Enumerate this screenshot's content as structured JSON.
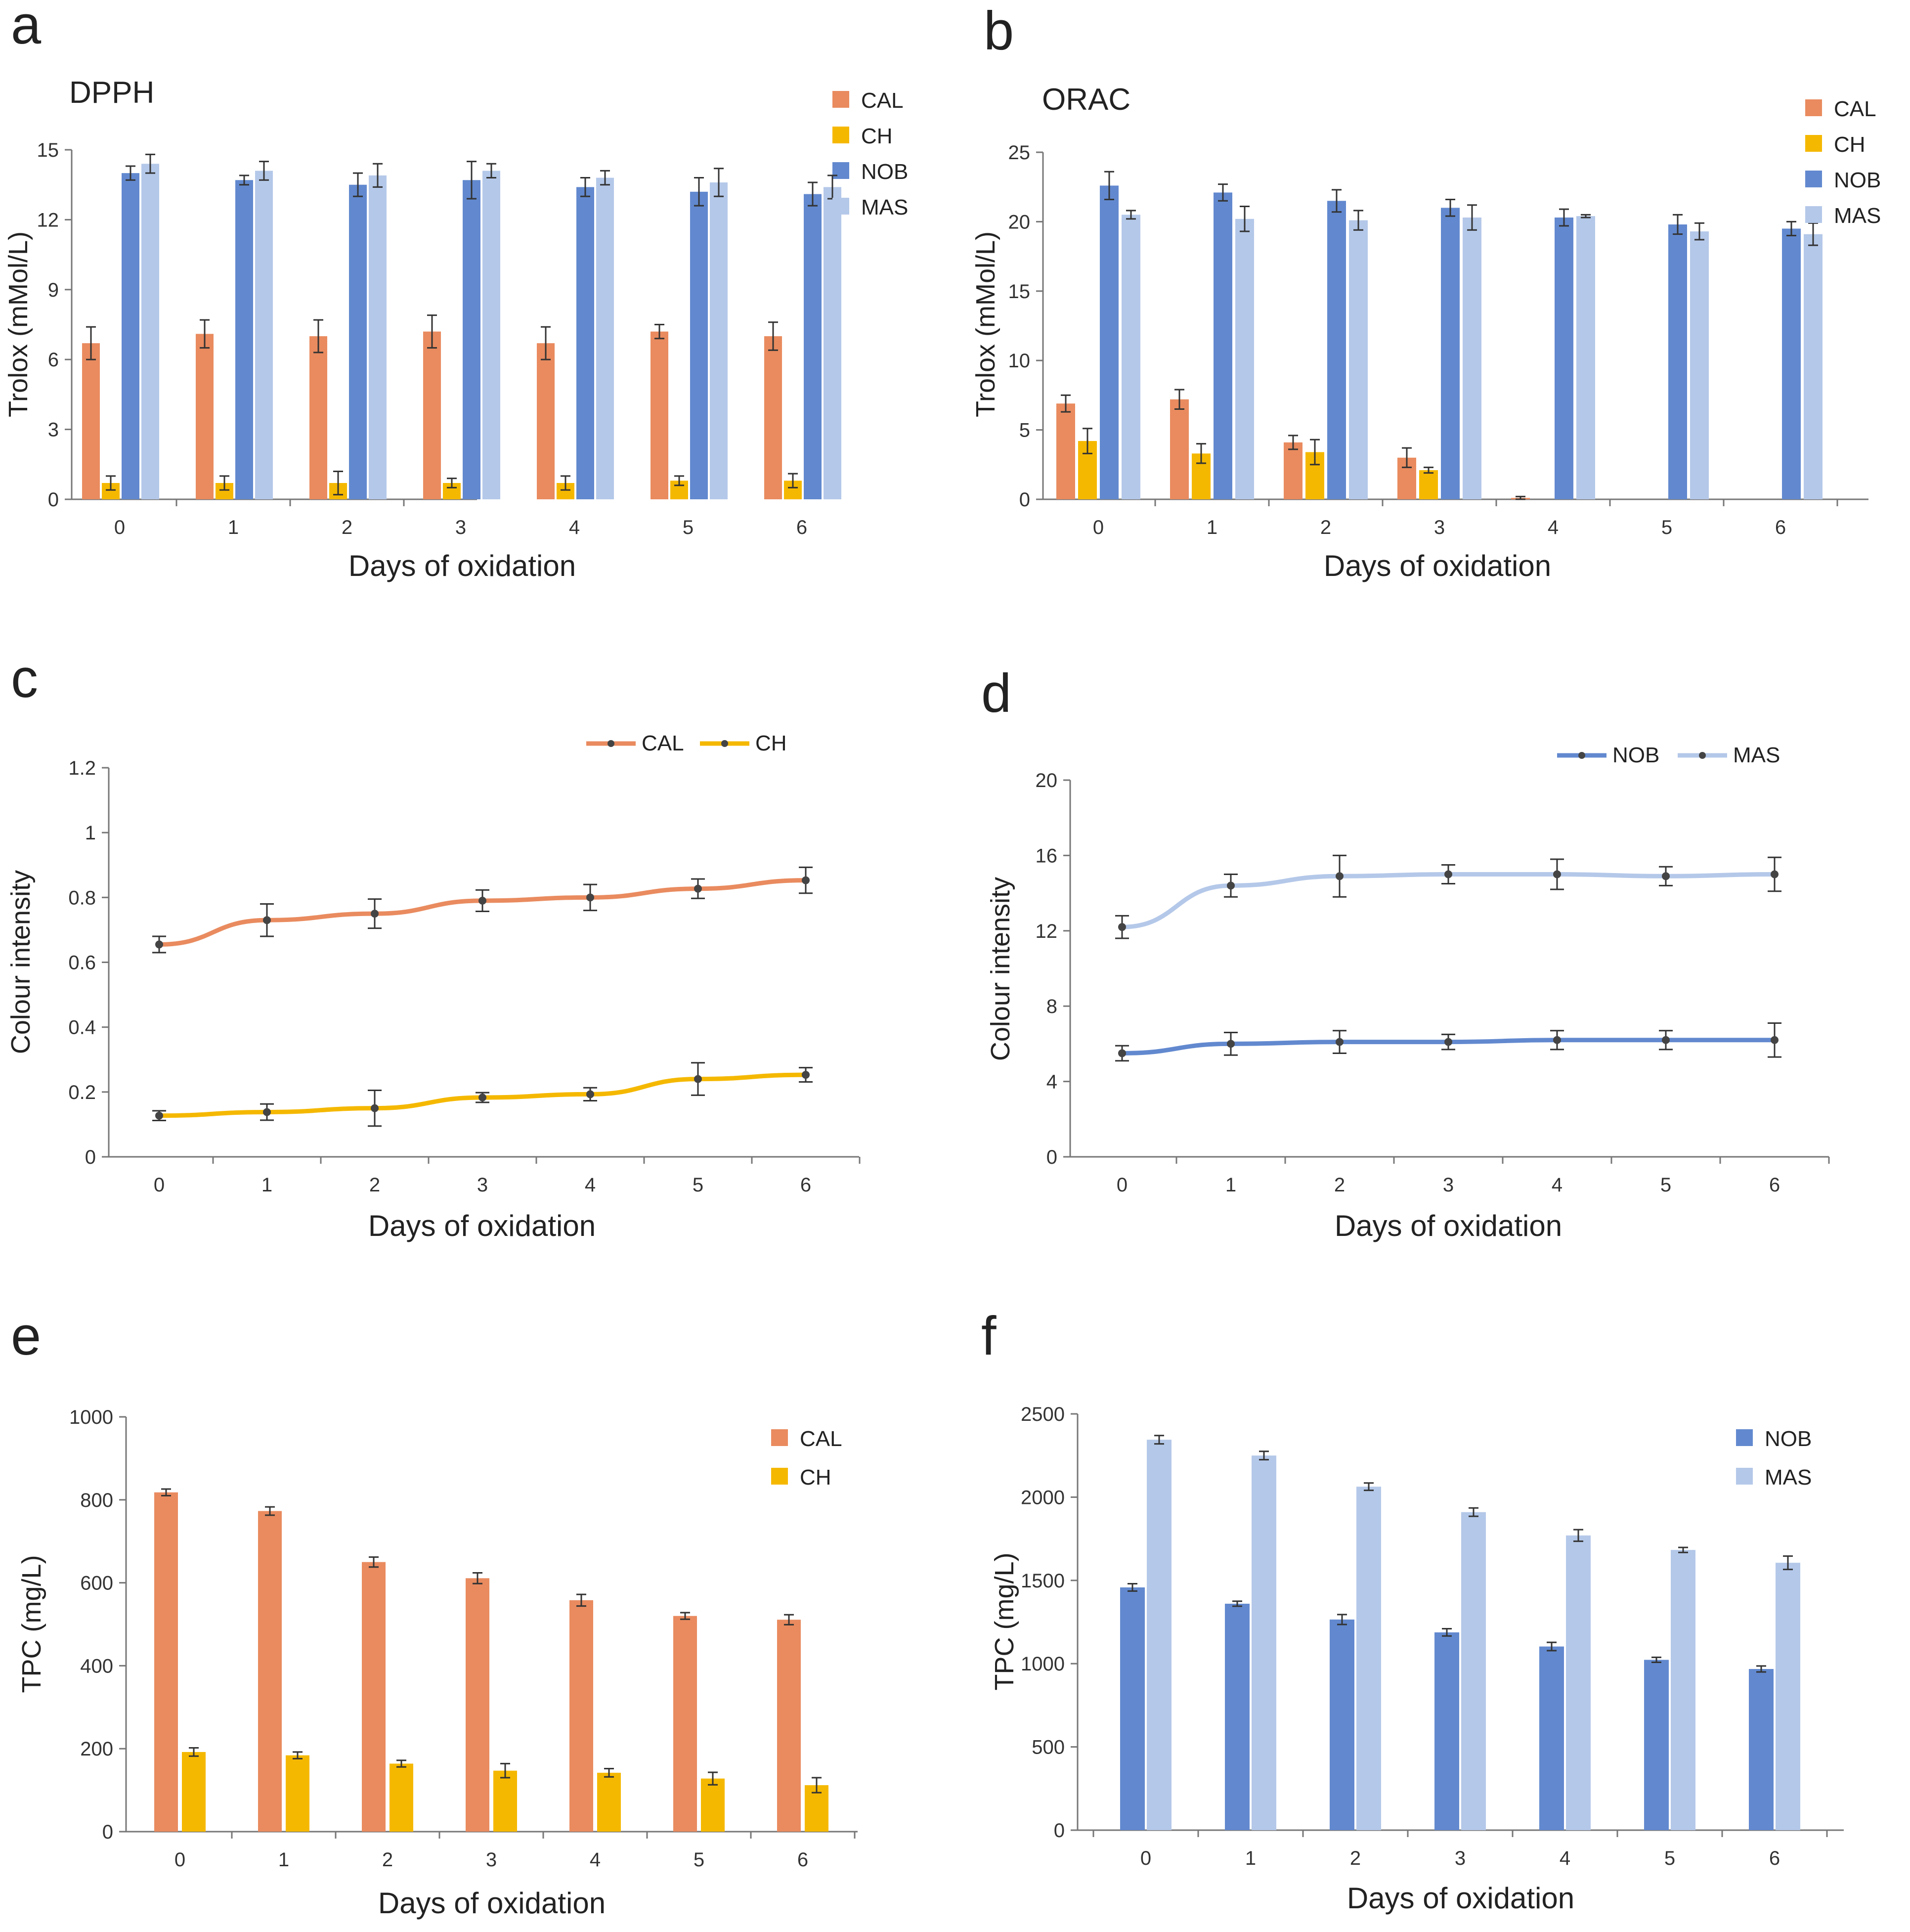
{
  "figure": {
    "colors": {
      "CAL": "#E98B5F",
      "CH": "#F5B800",
      "NOB": "#6289CF",
      "MAS": "#B4C8E9",
      "axis": "#777777",
      "errorbar": "#333333"
    }
  },
  "chart_data": [
    {
      "panel": "a",
      "type": "bar",
      "title": "DPPH",
      "xlabel": "Days of oxidation",
      "ylabel": "Trolox (mMol/L)",
      "categories": [
        "0",
        "1",
        "2",
        "3",
        "4",
        "5",
        "6"
      ],
      "ylim": [
        0,
        15
      ],
      "yticks": [
        "0",
        "3",
        "6",
        "9",
        "12",
        "15"
      ],
      "legend_position": "top-right",
      "series": [
        {
          "name": "CAL",
          "color": "#E98B5F",
          "values": [
            6.7,
            7.1,
            7.0,
            7.2,
            6.7,
            7.2,
            7.0
          ],
          "errors": [
            0.7,
            0.6,
            0.7,
            0.7,
            0.7,
            0.3,
            0.6
          ]
        },
        {
          "name": "CH",
          "color": "#F5B800",
          "values": [
            0.7,
            0.7,
            0.7,
            0.7,
            0.7,
            0.8,
            0.8
          ],
          "errors": [
            0.3,
            0.3,
            0.5,
            0.2,
            0.3,
            0.2,
            0.3
          ]
        },
        {
          "name": "NOB",
          "color": "#6289CF",
          "values": [
            14.0,
            13.7,
            13.5,
            13.7,
            13.4,
            13.2,
            13.1
          ],
          "errors": [
            0.3,
            0.2,
            0.5,
            0.8,
            0.4,
            0.6,
            0.5
          ]
        },
        {
          "name": "MAS",
          "color": "#B4C8E9",
          "values": [
            14.4,
            14.1,
            13.9,
            14.1,
            13.8,
            13.6,
            13.4
          ],
          "errors": [
            0.4,
            0.4,
            0.5,
            0.3,
            0.3,
            0.6,
            0.5
          ]
        }
      ]
    },
    {
      "panel": "b",
      "type": "bar",
      "title": "ORAC",
      "xlabel": "Days of oxidation",
      "ylabel": "Trolox (mMol/L)",
      "categories": [
        "0",
        "1",
        "2",
        "3",
        "4",
        "5",
        "6"
      ],
      "ylim": [
        0,
        25
      ],
      "yticks": [
        "0",
        "5",
        "10",
        "15",
        "20",
        "25"
      ],
      "legend_position": "top-right",
      "series": [
        {
          "name": "CAL",
          "color": "#E98B5F",
          "values": [
            6.9,
            7.2,
            4.1,
            3.0,
            0.1,
            0,
            0
          ],
          "errors": [
            0.6,
            0.7,
            0.5,
            0.7,
            0.1,
            0,
            0
          ]
        },
        {
          "name": "CH",
          "color": "#F5B800",
          "values": [
            4.2,
            3.3,
            3.4,
            2.1,
            0,
            0,
            0
          ],
          "errors": [
            0.9,
            0.7,
            0.9,
            0.2,
            0,
            0,
            0
          ]
        },
        {
          "name": "NOB",
          "color": "#6289CF",
          "values": [
            22.6,
            22.1,
            21.5,
            21.0,
            20.3,
            19.8,
            19.5
          ],
          "errors": [
            1.0,
            0.6,
            0.8,
            0.6,
            0.6,
            0.7,
            0.5
          ]
        },
        {
          "name": "MAS",
          "color": "#B4C8E9",
          "values": [
            20.5,
            20.2,
            20.1,
            20.3,
            20.4,
            19.3,
            19.1
          ],
          "errors": [
            0.3,
            0.9,
            0.7,
            0.9,
            0.1,
            0.6,
            0.8
          ]
        }
      ]
    },
    {
      "panel": "c",
      "type": "line",
      "title": "",
      "xlabel": "Days of oxidation",
      "ylabel": "Colour intensity",
      "x": [
        "0",
        "1",
        "2",
        "3",
        "4",
        "5",
        "6"
      ],
      "ylim": [
        0,
        1.2
      ],
      "yticks": [
        "0",
        "0.2",
        "0.4",
        "0.6",
        "0.8",
        "1",
        "1.2"
      ],
      "legend_position": "top-right",
      "series": [
        {
          "name": "CAL",
          "color": "#E98B5F",
          "values": [
            0.655,
            0.73,
            0.75,
            0.79,
            0.8,
            0.827,
            0.853
          ],
          "errors": [
            0.025,
            0.05,
            0.045,
            0.033,
            0.04,
            0.03,
            0.04
          ]
        },
        {
          "name": "CH",
          "color": "#F5B800",
          "values": [
            0.127,
            0.138,
            0.15,
            0.183,
            0.193,
            0.24,
            0.253
          ],
          "errors": [
            0.015,
            0.025,
            0.055,
            0.015,
            0.02,
            0.05,
            0.022
          ]
        }
      ]
    },
    {
      "panel": "d",
      "type": "line",
      "title": "",
      "xlabel": "Days of oxidation",
      "ylabel": "Colour intensity",
      "x": [
        "0",
        "1",
        "2",
        "3",
        "4",
        "5",
        "6"
      ],
      "ylim": [
        0,
        20
      ],
      "yticks": [
        "0",
        "4",
        "8",
        "12",
        "16",
        "20"
      ],
      "legend_position": "top-right",
      "series": [
        {
          "name": "NOB",
          "color": "#6289CF",
          "values": [
            5.5,
            6.0,
            6.1,
            6.1,
            6.2,
            6.2,
            6.2
          ],
          "errors": [
            0.4,
            0.6,
            0.6,
            0.4,
            0.5,
            0.5,
            0.9
          ]
        },
        {
          "name": "MAS",
          "color": "#B4C8E9",
          "values": [
            12.2,
            14.4,
            14.9,
            15.0,
            15.0,
            14.9,
            15.0
          ],
          "errors": [
            0.6,
            0.6,
            1.1,
            0.5,
            0.8,
            0.5,
            0.9
          ]
        }
      ]
    },
    {
      "panel": "e",
      "type": "bar",
      "title": "",
      "xlabel": "Days of oxidation",
      "ylabel": "TPC (mg/L)",
      "categories": [
        "0",
        "1",
        "2",
        "3",
        "4",
        "5",
        "6"
      ],
      "ylim": [
        0,
        1000
      ],
      "yticks": [
        "0",
        "200",
        "400",
        "600",
        "800",
        "1000"
      ],
      "legend_position": "top-right",
      "series": [
        {
          "name": "CAL",
          "color": "#E98B5F",
          "values": [
            818,
            773,
            650,
            611,
            558,
            520,
            511
          ],
          "errors": [
            8,
            10,
            12,
            13,
            14,
            8,
            12
          ]
        },
        {
          "name": "CH",
          "color": "#F5B800",
          "values": [
            192,
            184,
            164,
            147,
            142,
            128,
            112
          ],
          "errors": [
            10,
            8,
            8,
            17,
            10,
            15,
            18
          ]
        }
      ]
    },
    {
      "panel": "f",
      "type": "bar",
      "title": "",
      "xlabel": "Days of oxidation",
      "ylabel": "TPC (mg/L)",
      "categories": [
        "0",
        "1",
        "2",
        "3",
        "4",
        "5",
        "6"
      ],
      "ylim": [
        0,
        2500
      ],
      "yticks": [
        "0",
        "500",
        "1000",
        "1500",
        "2000",
        "2500"
      ],
      "legend_position": "top-right",
      "series": [
        {
          "name": "NOB",
          "color": "#6289CF",
          "values": [
            1458,
            1360,
            1265,
            1188,
            1103,
            1023,
            968
          ],
          "errors": [
            22,
            15,
            30,
            22,
            25,
            15,
            18
          ]
        },
        {
          "name": "MAS",
          "color": "#B4C8E9",
          "values": [
            2345,
            2250,
            2063,
            1910,
            1770,
            1683,
            1606
          ],
          "errors": [
            25,
            25,
            22,
            25,
            35,
            15,
            40
          ]
        }
      ]
    }
  ]
}
